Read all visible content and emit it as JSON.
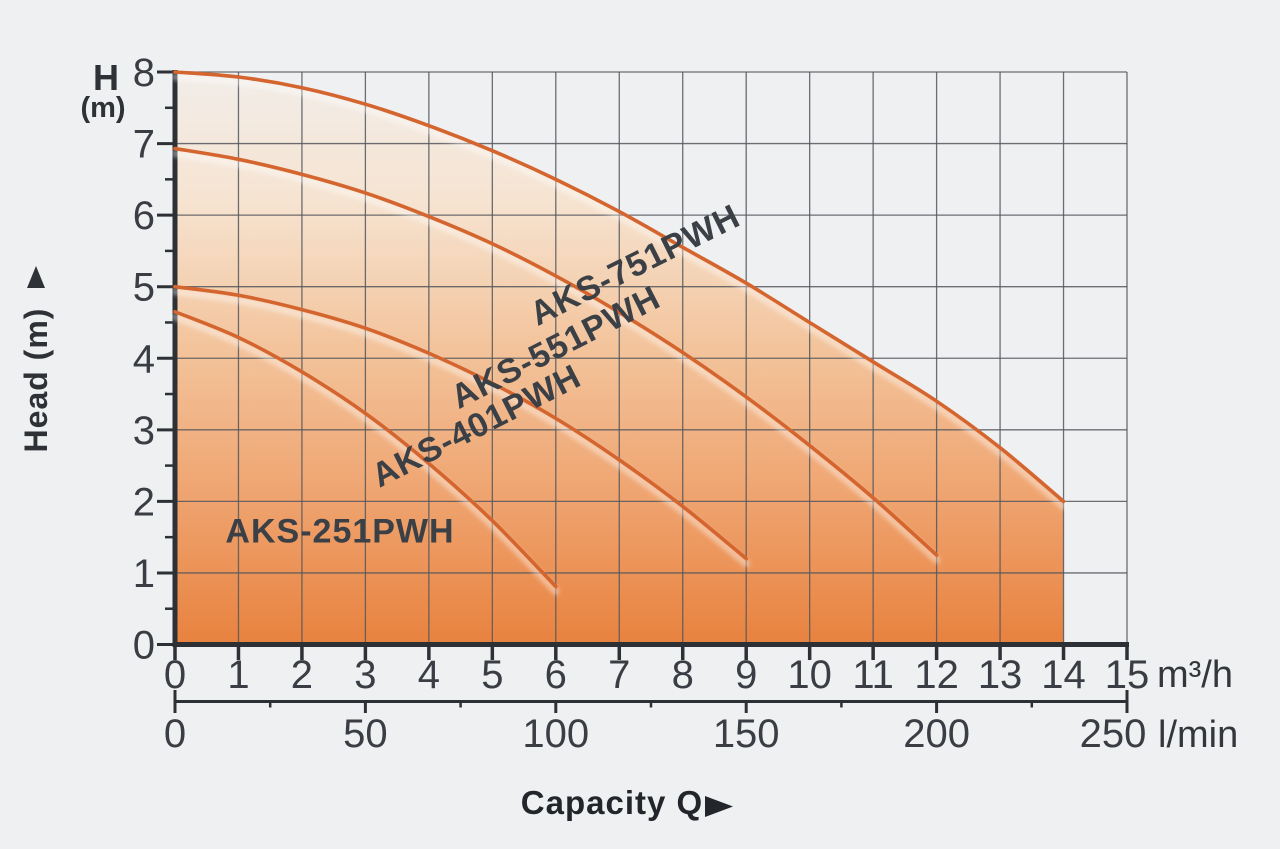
{
  "chart_data": {
    "type": "line",
    "grid": "on",
    "legend": "none",
    "x_axis": {
      "title": "Capacity Q",
      "primary_unit": "m³/h",
      "primary_range": [
        0,
        15
      ],
      "primary_ticks": [
        0,
        1,
        2,
        3,
        4,
        5,
        6,
        7,
        8,
        9,
        10,
        11,
        12,
        13,
        14,
        15
      ],
      "secondary_unit": "l/min",
      "secondary_range": [
        0,
        250
      ],
      "secondary_ticks": [
        0,
        50,
        100,
        150,
        200,
        250
      ],
      "secondary_minor_ticks": [
        25,
        75,
        125,
        175,
        225
      ]
    },
    "y_axis": {
      "title": "Head (m)",
      "corner_label_line1": "H",
      "corner_label_line2": "(m)",
      "range": [
        0,
        8
      ],
      "ticks": [
        0,
        1,
        2,
        3,
        4,
        5,
        6,
        7,
        8
      ],
      "minor_ticks": [
        0.5,
        1.5,
        2.5,
        3.5,
        4.5,
        5.5,
        6.5,
        7.5
      ]
    },
    "series": [
      {
        "name": "AKS-751PWH",
        "points": [
          [
            0,
            8.0
          ],
          [
            1,
            7.93
          ],
          [
            2,
            7.78
          ],
          [
            3,
            7.55
          ],
          [
            4,
            7.25
          ],
          [
            5,
            6.9
          ],
          [
            6,
            6.5
          ],
          [
            7,
            6.05
          ],
          [
            8,
            5.55
          ],
          [
            9,
            5.05
          ],
          [
            10,
            4.5
          ],
          [
            11,
            3.95
          ],
          [
            12,
            3.4
          ],
          [
            13,
            2.75
          ],
          [
            14,
            2.0
          ]
        ],
        "label": {
          "text": "AKS-751PWH",
          "x": 7.25,
          "y": 5.3,
          "rotation": -26.5
        }
      },
      {
        "name": "AKS-551PWH",
        "points": [
          [
            0,
            6.93
          ],
          [
            1,
            6.78
          ],
          [
            2,
            6.57
          ],
          [
            3,
            6.31
          ],
          [
            4,
            5.98
          ],
          [
            5,
            5.6
          ],
          [
            6,
            5.15
          ],
          [
            7,
            4.64
          ],
          [
            8,
            4.08
          ],
          [
            9,
            3.46
          ],
          [
            10,
            2.78
          ],
          [
            11,
            2.05
          ],
          [
            12,
            1.25
          ]
        ],
        "label": {
          "text": "AKS-551PWH",
          "x": 6.0,
          "y": 4.15,
          "rotation": -27
        }
      },
      {
        "name": "AKS-401PWH",
        "points": [
          [
            0,
            5.0
          ],
          [
            1,
            4.88
          ],
          [
            2,
            4.68
          ],
          [
            3,
            4.42
          ],
          [
            4,
            4.07
          ],
          [
            5,
            3.65
          ],
          [
            6,
            3.16
          ],
          [
            7,
            2.58
          ],
          [
            8,
            1.93
          ],
          [
            9,
            1.2
          ]
        ],
        "label": {
          "text": "AKS-401PWH",
          "x": 4.75,
          "y": 3.05,
          "rotation": -27
        }
      },
      {
        "name": "AKS-251PWH",
        "points": [
          [
            0,
            4.65
          ],
          [
            1,
            4.29
          ],
          [
            2,
            3.81
          ],
          [
            3,
            3.23
          ],
          [
            4,
            2.53
          ],
          [
            5,
            1.73
          ],
          [
            6,
            0.81
          ]
        ],
        "label": {
          "text": "AKS-251PWH",
          "x": 2.6,
          "y": 1.58,
          "rotation": 0
        }
      }
    ],
    "fill_under_series": "AKS-751PWH",
    "colors": {
      "curve": "#d4652f",
      "fill_bottom": "#e8823f",
      "fill_lower_mid": "#efa470",
      "fill_mid": "#f3c49c",
      "fill_upper_mid": "#f6e4d2",
      "fill_top": "#f1ede9",
      "grid": "#54575c",
      "axis": "#2d3136",
      "tick_text": "#3a3e44",
      "background": "#eef0f1"
    }
  }
}
